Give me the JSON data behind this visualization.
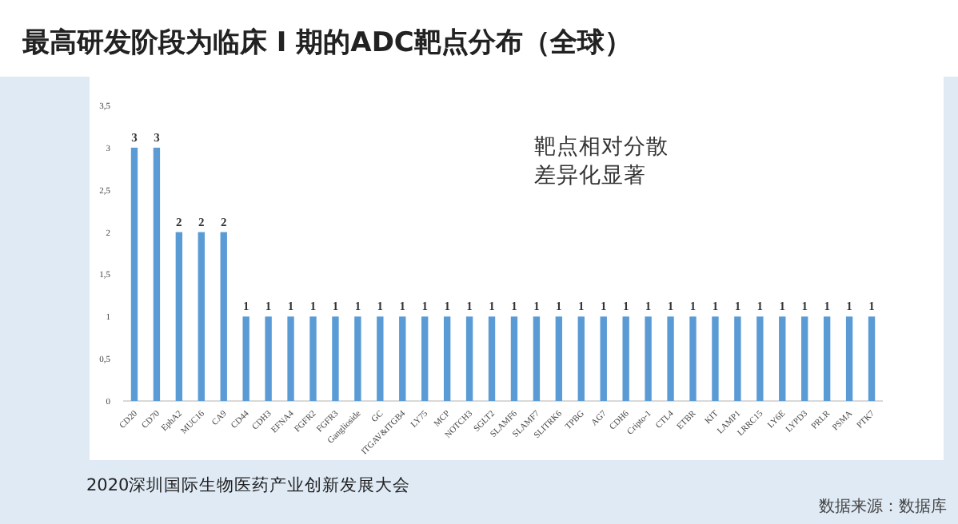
{
  "chart_data": {
    "type": "bar",
    "title": "最高研发阶段为临床 I 期的ADC靶点分布（全球）",
    "categories": [
      "CD20",
      "CD70",
      "EphA2",
      "MUC16",
      "CA9",
      "CD44",
      "CDH3",
      "EFNA4",
      "FGFR2",
      "FGFR3",
      "Ganglioside",
      "GC",
      "ITGAV&ITGB4",
      "LY75",
      "MCP",
      "NOTCH3",
      "SGLT2",
      "SLAMF6",
      "SLAMF7",
      "SLITRK6",
      "TPBG",
      "AG7",
      "CDH6",
      "Cripto-1",
      "CTL4",
      "ETBR",
      "KIT",
      "LAMP1",
      "LRRC15",
      "LY6E",
      "LYPD3",
      "PRLR",
      "PSMA",
      "PTK7"
    ],
    "values": [
      3,
      3,
      2,
      2,
      2,
      1,
      1,
      1,
      1,
      1,
      1,
      1,
      1,
      1,
      1,
      1,
      1,
      1,
      1,
      1,
      1,
      1,
      1,
      1,
      1,
      1,
      1,
      1,
      1,
      1,
      1,
      1,
      1,
      1
    ],
    "color": "#5b9bd5",
    "ylim": [
      0,
      3.5
    ],
    "yticks": [
      0,
      {
        "value": 0.5,
        "label": "0,5"
      },
      1,
      {
        "value": 1.5,
        "label": "1,5"
      },
      2,
      {
        "value": 2.5,
        "label": "2,5"
      },
      3,
      {
        "value": 3.5,
        "label": "3,5"
      }
    ],
    "data_labels": true,
    "grid": false,
    "annotations": [
      "靶点相对分散",
      "差异化显著",
      "2020深圳国际生物医药产业创新发展大会",
      "数据来源：数据库"
    ]
  }
}
